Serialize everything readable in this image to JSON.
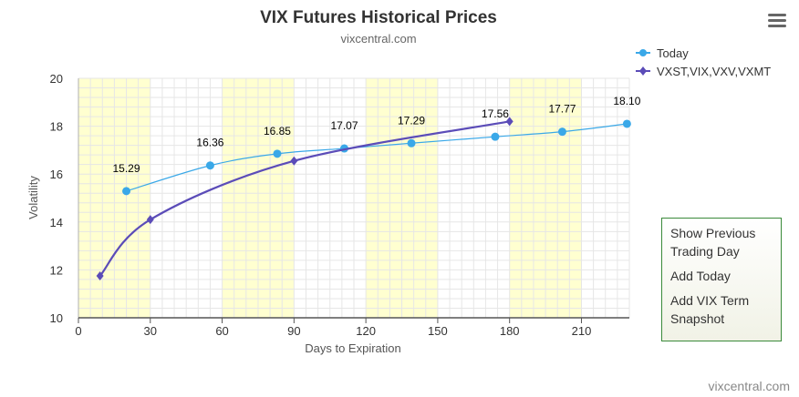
{
  "menu": {
    "items": [
      {
        "line1": "Show Previous",
        "line2": "Trading Day"
      },
      {
        "line1": "Add Today",
        "line2": ""
      },
      {
        "line1": "Add VIX Term",
        "line2": "Snapshot"
      }
    ]
  },
  "credit": "vixcentral.com",
  "chart_data": {
    "type": "line",
    "title": "VIX Futures Historical Prices",
    "subtitle": "vixcentral.com",
    "xlabel": "Days to Expiration",
    "ylabel": "Volatility",
    "xlim": [
      0,
      230
    ],
    "ylim": [
      10,
      20
    ],
    "x_ticks": [
      0,
      30,
      60,
      90,
      120,
      150,
      180,
      210
    ],
    "y_ticks": [
      10,
      12,
      14,
      16,
      18,
      20
    ],
    "grid": true,
    "legend": "top-right",
    "shaded_bands": [
      [
        0,
        30
      ],
      [
        60,
        90
      ],
      [
        120,
        150
      ],
      [
        180,
        210
      ]
    ],
    "colors": {
      "today": "#3aa8e8",
      "vx": "#5b4cb8",
      "band": "#ffffd0",
      "grid": "#e6e6e6"
    },
    "series": [
      {
        "name": "Today",
        "marker": "circle",
        "labels": true,
        "points": [
          [
            20,
            15.29
          ],
          [
            55,
            16.36
          ],
          [
            83,
            16.85
          ],
          [
            111,
            17.07
          ],
          [
            139,
            17.29
          ],
          [
            174,
            17.56
          ],
          [
            202,
            17.77
          ],
          [
            229,
            18.1
          ]
        ]
      },
      {
        "name": "VXST,VIX,VXV,VXMT",
        "marker": "diamond",
        "labels": false,
        "points": [
          [
            9,
            11.75
          ],
          [
            30,
            14.1
          ],
          [
            90,
            16.55
          ],
          [
            180,
            18.2
          ]
        ]
      }
    ]
  }
}
